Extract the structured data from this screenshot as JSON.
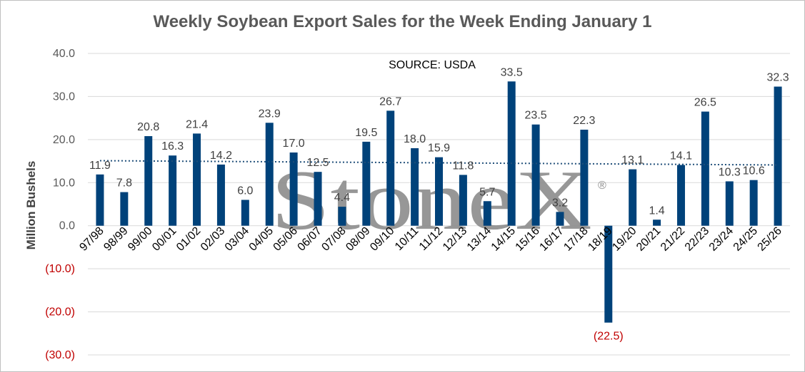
{
  "chart_data": {
    "type": "bar",
    "title": "Weekly Soybean Export Sales for the Week Ending January 1",
    "ylabel": "Million Bushels",
    "xlabel": "",
    "annotation": "SOURCE: USDA",
    "watermark": "StoneX",
    "watermark_mark": "®",
    "ylim": [
      -30,
      40
    ],
    "yticks": [
      40,
      30,
      20,
      10,
      0,
      -10,
      -20,
      -30
    ],
    "ytick_labels": [
      "40.0",
      "30.0",
      "20.0",
      "10.0",
      "0.0",
      "(10.0)",
      "(20.0)",
      "(30.0)"
    ],
    "grid": true,
    "legend": "none",
    "bar_color": "#00427a",
    "negative_label_color": "#c00000",
    "trendline": {
      "style": "dotted",
      "color": "#1f4e79",
      "start": 15.1,
      "end": 14.1
    },
    "categories": [
      "97/98",
      "98/99",
      "99/00",
      "00/01",
      "01/02",
      "02/03",
      "03/04",
      "04/05",
      "05/06",
      "06/07",
      "07/08",
      "08/09",
      "09/10",
      "10/11",
      "11/12",
      "12/13",
      "13/14",
      "14/15",
      "15/16",
      "16/17",
      "17/18",
      "18/19",
      "19/20",
      "20/21",
      "21/22",
      "22/23",
      "23/24",
      "24/25",
      "25/26"
    ],
    "values": [
      11.9,
      7.8,
      20.8,
      16.3,
      21.4,
      14.2,
      6.0,
      23.9,
      17.0,
      12.5,
      4.4,
      19.5,
      26.7,
      18.0,
      15.9,
      11.8,
      5.7,
      33.5,
      23.5,
      3.2,
      22.3,
      -22.5,
      13.1,
      1.4,
      14.1,
      26.5,
      10.3,
      10.6,
      32.3
    ],
    "data_labels": [
      "11.9",
      "7.8",
      "20.8",
      "16.3",
      "21.4",
      "14.2",
      "6.0",
      "23.9",
      "17.0",
      "12.5",
      "4.4",
      "19.5",
      "26.7",
      "18.0",
      "15.9",
      "11.8",
      "5.7",
      "33.5",
      "23.5",
      "3.2",
      "22.3",
      "(22.5)",
      "13.1",
      "1.4",
      "14.1",
      "26.5",
      "10.3",
      "10.6",
      "32.3"
    ]
  }
}
